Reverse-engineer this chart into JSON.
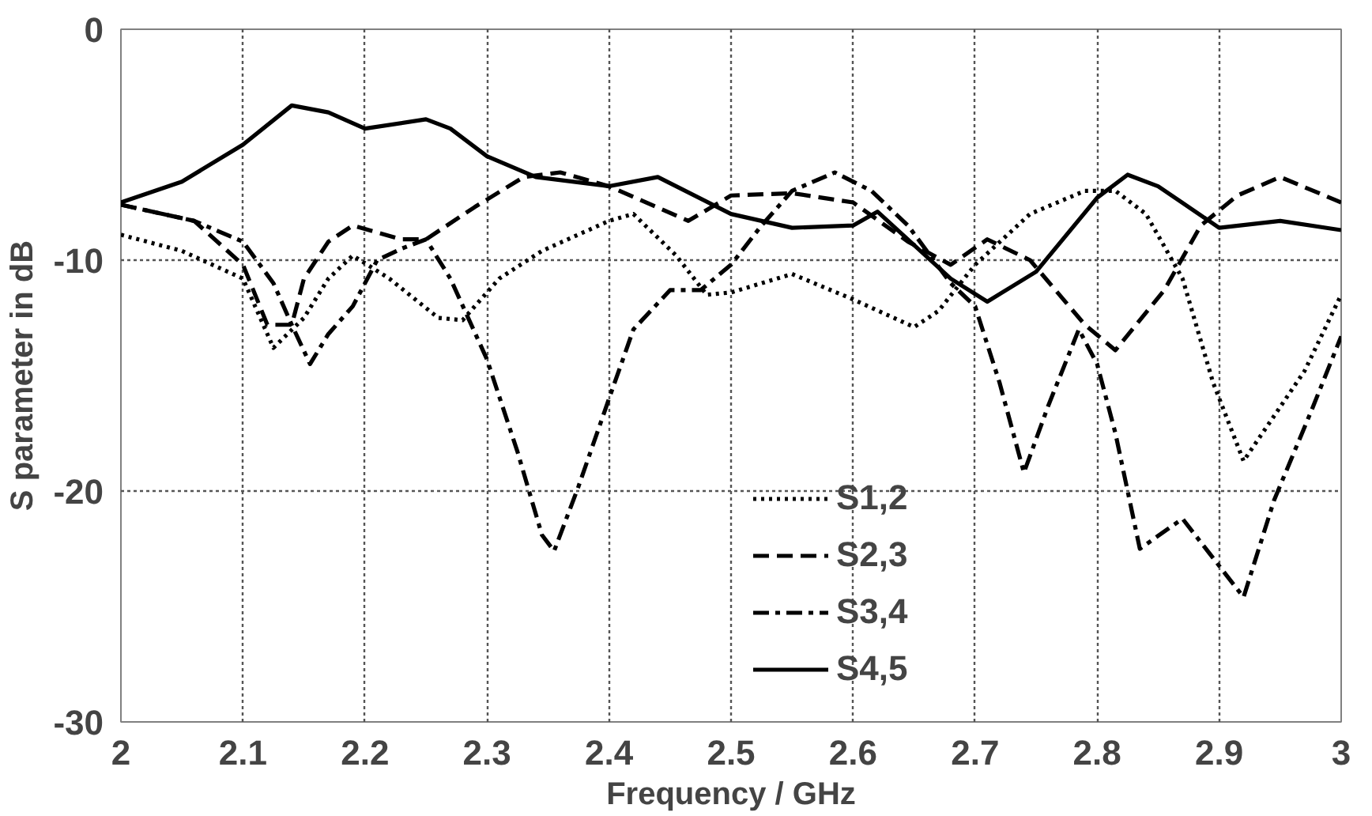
{
  "chart_data": {
    "type": "line",
    "xlabel": "Frequency / GHz",
    "ylabel": "S parameter in dB",
    "xlim": [
      2,
      3
    ],
    "ylim": [
      -30,
      0
    ],
    "xticks": [
      2,
      2.1,
      2.2,
      2.3,
      2.4,
      2.5,
      2.6,
      2.7,
      2.8,
      2.9,
      3
    ],
    "yticks": [
      -30,
      -20,
      -10,
      0
    ],
    "grid": true,
    "legend": "bottom",
    "marker": "none",
    "series": [
      {
        "name": "S1,2",
        "color": "#000000",
        "line_style": "dotted",
        "x": [
          2.0,
          2.05,
          2.1,
          2.125,
          2.15,
          2.17,
          2.19,
          2.22,
          2.26,
          2.28,
          2.31,
          2.345,
          2.4,
          2.42,
          2.455,
          2.48,
          2.5,
          2.55,
          2.6,
          2.65,
          2.67,
          2.7,
          2.745,
          2.79,
          2.815,
          2.84,
          2.87,
          2.895,
          2.92,
          2.97,
          3.0
        ],
        "values": [
          -8.9,
          -9.6,
          -10.8,
          -13.8,
          -12.5,
          -10.8,
          -9.8,
          -10.8,
          -12.5,
          -12.6,
          -10.8,
          -9.6,
          -8.3,
          -8.0,
          -9.8,
          -11.5,
          -11.4,
          -10.6,
          -11.7,
          -12.9,
          -12.2,
          -10.2,
          -8.0,
          -7.0,
          -7.0,
          -8.0,
          -10.8,
          -15.3,
          -18.7,
          -14.8,
          -11.5
        ]
      },
      {
        "name": "S2,3",
        "color": "#000000",
        "line_style": "dashed",
        "x": [
          2.0,
          2.06,
          2.1,
          2.12,
          2.14,
          2.15,
          2.17,
          2.19,
          2.23,
          2.25,
          2.29,
          2.33,
          2.36,
          2.4,
          2.465,
          2.5,
          2.55,
          2.6,
          2.645,
          2.68,
          2.71,
          2.745,
          2.79,
          2.815,
          2.855,
          2.885,
          2.915,
          2.95,
          3.0
        ],
        "values": [
          -7.6,
          -8.3,
          -10.2,
          -12.8,
          -12.8,
          -10.8,
          -9.2,
          -8.5,
          -9.1,
          -9.1,
          -7.7,
          -6.4,
          -6.2,
          -6.8,
          -8.3,
          -7.2,
          -7.1,
          -7.5,
          -9.2,
          -10.2,
          -9.1,
          -10.0,
          -12.8,
          -13.9,
          -11.3,
          -8.5,
          -7.2,
          -6.4,
          -7.5
        ]
      },
      {
        "name": "S3,4",
        "color": "#000000",
        "line_style": "dashdot",
        "x": [
          2.0,
          2.06,
          2.1,
          2.125,
          2.14,
          2.155,
          2.17,
          2.19,
          2.21,
          2.23,
          2.25,
          2.27,
          2.3,
          2.325,
          2.345,
          2.355,
          2.375,
          2.4,
          2.42,
          2.45,
          2.475,
          2.5,
          2.525,
          2.55,
          2.585,
          2.615,
          2.645,
          2.68,
          2.7,
          2.72,
          2.74,
          2.76,
          2.785,
          2.8,
          2.815,
          2.835,
          2.87,
          2.895,
          2.92,
          2.945,
          2.975,
          3.0
        ],
        "values": [
          -7.6,
          -8.3,
          -9.2,
          -11.0,
          -12.8,
          -14.5,
          -13.2,
          -12.0,
          -10.0,
          -9.5,
          -9.1,
          -10.8,
          -14.3,
          -18.3,
          -21.9,
          -22.6,
          -19.8,
          -16.0,
          -13.0,
          -11.3,
          -11.3,
          -10.2,
          -8.5,
          -7.0,
          -6.2,
          -7.0,
          -8.5,
          -11.0,
          -12.0,
          -15.3,
          -19.2,
          -16.3,
          -13.0,
          -14.5,
          -17.5,
          -22.5,
          -21.2,
          -22.9,
          -24.6,
          -20.4,
          -16.6,
          -13.3
        ]
      },
      {
        "name": "S4,5",
        "color": "#000000",
        "line_style": "solid",
        "x": [
          2.0,
          2.05,
          2.1,
          2.14,
          2.17,
          2.2,
          2.25,
          2.27,
          2.3,
          2.34,
          2.4,
          2.44,
          2.5,
          2.55,
          2.6,
          2.62,
          2.68,
          2.71,
          2.75,
          2.8,
          2.825,
          2.85,
          2.9,
          2.95,
          3.0
        ],
        "values": [
          -7.5,
          -6.6,
          -5.0,
          -3.3,
          -3.6,
          -4.3,
          -3.9,
          -4.3,
          -5.5,
          -6.4,
          -6.8,
          -6.4,
          -8.0,
          -8.6,
          -8.5,
          -7.9,
          -10.8,
          -11.8,
          -10.5,
          -7.3,
          -6.3,
          -6.8,
          -8.6,
          -8.3,
          -8.7
        ]
      }
    ]
  }
}
